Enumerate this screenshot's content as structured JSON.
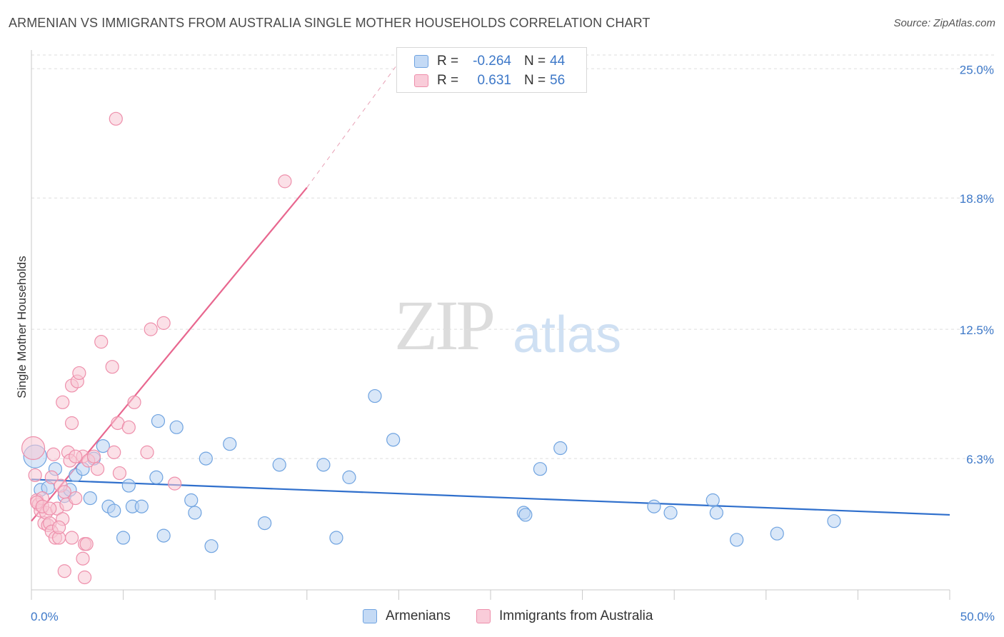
{
  "title": "ARMENIAN VS IMMIGRANTS FROM AUSTRALIA SINGLE MOTHER HOUSEHOLDS CORRELATION CHART",
  "source": "Source: ZipAtlas.com",
  "watermark": {
    "zip": "ZIP",
    "atlas": "atlas"
  },
  "legend": {
    "r_label": "R =",
    "n_label": "N =",
    "rows": [
      {
        "r": "-0.264",
        "n": "44",
        "color": "#a9c8f0"
      },
      {
        "r": "0.631",
        "n": "56",
        "color": "#f5b8ca"
      }
    ]
  },
  "bottom_legend": [
    "Armenians",
    "Immigrants from Australia"
  ],
  "chart_data": {
    "type": "scatter",
    "title": "ARMENIAN VS IMMIGRANTS FROM AUSTRALIA SINGLE MOTHER HOUSEHOLDS CORRELATION CHART",
    "xlabel": "",
    "ylabel": "Single Mother Households",
    "xlim": [
      0,
      50
    ],
    "ylim": [
      0,
      25.9
    ],
    "x_tick_labels": [
      "0.0%",
      "50.0%"
    ],
    "y_ticks": [
      6.3,
      12.5,
      18.8,
      25.0
    ],
    "y_tick_labels": [
      "6.3%",
      "12.5%",
      "18.8%",
      "25.0%"
    ],
    "grid": true,
    "legend_position": "top-center",
    "series": [
      {
        "name": "Armenians",
        "color": "#6fa3e0",
        "fill": "#b9d3f3",
        "trend": {
          "x": [
            0,
            50
          ],
          "y": [
            5.3,
            3.6
          ],
          "color": "#2f6fcc"
        },
        "points": [
          [
            0.2,
            6.4
          ],
          [
            0.5,
            4.8
          ],
          [
            0.9,
            4.9
          ],
          [
            1.3,
            5.8
          ],
          [
            1.8,
            4.5
          ],
          [
            2.1,
            4.8
          ],
          [
            2.4,
            5.5
          ],
          [
            2.8,
            5.8
          ],
          [
            3.2,
            4.4
          ],
          [
            3.4,
            6.3
          ],
          [
            3.9,
            6.9
          ],
          [
            4.2,
            4.0
          ],
          [
            4.5,
            3.8
          ],
          [
            5.0,
            2.5
          ],
          [
            5.3,
            5.0
          ],
          [
            5.5,
            4.0
          ],
          [
            6.0,
            4.0
          ],
          [
            6.8,
            5.4
          ],
          [
            6.9,
            8.1
          ],
          [
            7.2,
            2.6
          ],
          [
            7.9,
            7.8
          ],
          [
            8.7,
            4.3
          ],
          [
            8.9,
            3.7
          ],
          [
            9.5,
            6.3
          ],
          [
            9.8,
            2.1
          ],
          [
            10.8,
            7.0
          ],
          [
            12.7,
            3.2
          ],
          [
            13.5,
            6.0
          ],
          [
            15.9,
            6.0
          ],
          [
            16.6,
            2.5
          ],
          [
            17.3,
            5.4
          ],
          [
            18.7,
            9.3
          ],
          [
            19.7,
            7.2
          ],
          [
            26.8,
            3.7
          ],
          [
            26.9,
            3.6
          ],
          [
            27.7,
            5.8
          ],
          [
            28.8,
            6.8
          ],
          [
            33.9,
            4.0
          ],
          [
            34.8,
            3.7
          ],
          [
            37.1,
            4.3
          ],
          [
            37.3,
            3.7
          ],
          [
            38.4,
            2.4
          ],
          [
            40.6,
            2.7
          ],
          [
            43.7,
            3.3
          ]
        ]
      },
      {
        "name": "Immigrants from Australia",
        "color": "#ee8fab",
        "fill": "#f7c6d4",
        "trend": {
          "x": [
            0,
            15
          ],
          "y": [
            3.3,
            19.3
          ],
          "dash_to": [
            20.5,
            25.9
          ],
          "color": "#e8678f"
        },
        "points": [
          [
            0.1,
            6.8
          ],
          [
            0.2,
            5.5
          ],
          [
            0.3,
            4.3
          ],
          [
            0.4,
            4.1
          ],
          [
            0.5,
            3.8
          ],
          [
            0.6,
            4.4
          ],
          [
            0.7,
            3.2
          ],
          [
            0.8,
            3.7
          ],
          [
            0.9,
            3.1
          ],
          [
            1.0,
            3.2
          ],
          [
            1.1,
            2.8
          ],
          [
            1.1,
            5.4
          ],
          [
            1.2,
            6.5
          ],
          [
            1.3,
            2.5
          ],
          [
            1.4,
            3.9
          ],
          [
            1.5,
            2.5
          ],
          [
            1.6,
            5.0
          ],
          [
            1.7,
            3.4
          ],
          [
            1.7,
            9.0
          ],
          [
            1.8,
            4.7
          ],
          [
            1.8,
            0.9
          ],
          [
            1.9,
            4.1
          ],
          [
            2.0,
            6.6
          ],
          [
            2.1,
            6.2
          ],
          [
            2.2,
            2.5
          ],
          [
            2.2,
            8.0
          ],
          [
            2.2,
            9.8
          ],
          [
            2.4,
            4.4
          ],
          [
            2.5,
            10.0
          ],
          [
            2.6,
            10.4
          ],
          [
            2.8,
            1.5
          ],
          [
            2.8,
            6.4
          ],
          [
            2.9,
            0.6
          ],
          [
            2.9,
            2.2
          ],
          [
            3.0,
            2.2
          ],
          [
            3.1,
            6.2
          ],
          [
            3.4,
            6.4
          ],
          [
            3.6,
            5.8
          ],
          [
            3.8,
            11.9
          ],
          [
            4.4,
            10.7
          ],
          [
            4.5,
            6.6
          ],
          [
            4.6,
            22.6
          ],
          [
            4.7,
            8.0
          ],
          [
            4.8,
            5.6
          ],
          [
            5.3,
            7.8
          ],
          [
            5.6,
            9.0
          ],
          [
            6.3,
            6.6
          ],
          [
            6.5,
            12.5
          ],
          [
            7.2,
            12.8
          ],
          [
            7.8,
            5.1
          ],
          [
            13.8,
            19.6
          ],
          [
            0.3,
            4.2
          ],
          [
            0.6,
            4.0
          ],
          [
            1.0,
            3.9
          ],
          [
            1.5,
            3.0
          ],
          [
            2.4,
            6.4
          ]
        ]
      }
    ]
  }
}
